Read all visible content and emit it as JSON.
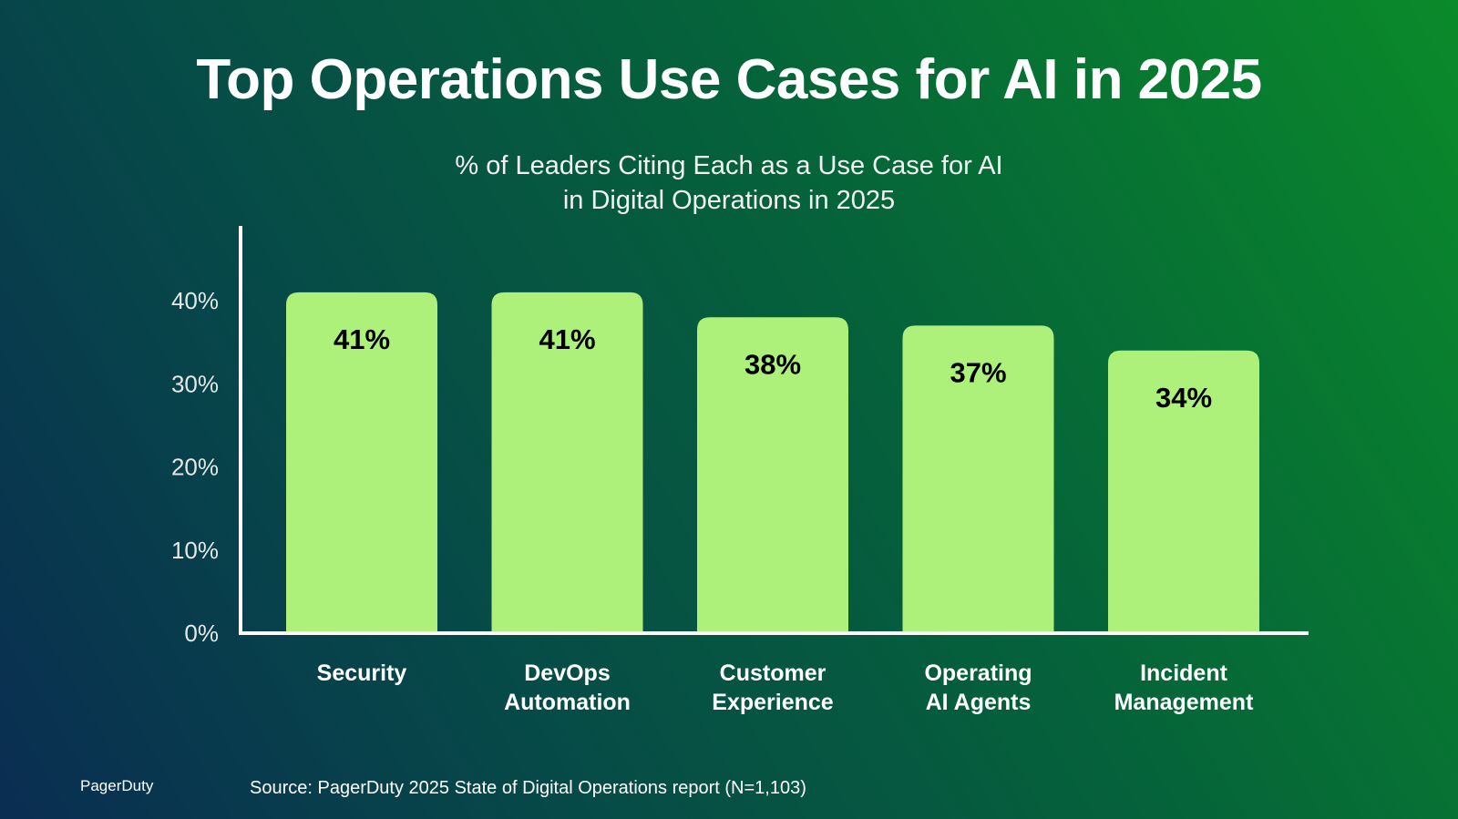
{
  "brand": "PagerDuty",
  "source": "Source: PagerDuty 2025 State of Digital Operations report (N=1,103)",
  "colors": {
    "bar": "#adf07a",
    "axis": "#ffffff",
    "tick_text": "#e6e6e6",
    "value_text": "#000000",
    "category_text": "#ffffff"
  },
  "chart_data": {
    "type": "bar",
    "title": "Top Operations Use Cases for AI in 2025",
    "subtitle_lines": [
      "% of Leaders Citing Each as a Use Case for AI",
      "in Digital Operations in 2025"
    ],
    "xlabel": "",
    "ylabel": "",
    "categories": [
      [
        "Security"
      ],
      [
        "DevOps",
        "Automation"
      ],
      [
        "Customer",
        "Experience"
      ],
      [
        "Operating",
        "AI Agents"
      ],
      [
        "Incident",
        "Management"
      ]
    ],
    "values": [
      41,
      41,
      38,
      37,
      34
    ],
    "data_labels": [
      "41%",
      "41%",
      "38%",
      "37%",
      "34%"
    ],
    "yticks": [
      0,
      10,
      20,
      30,
      40
    ],
    "ytick_labels": [
      "0%",
      "10%",
      "20%",
      "30%",
      "40%"
    ],
    "ylim": [
      0,
      40
    ],
    "grid": false,
    "legend": "none"
  }
}
